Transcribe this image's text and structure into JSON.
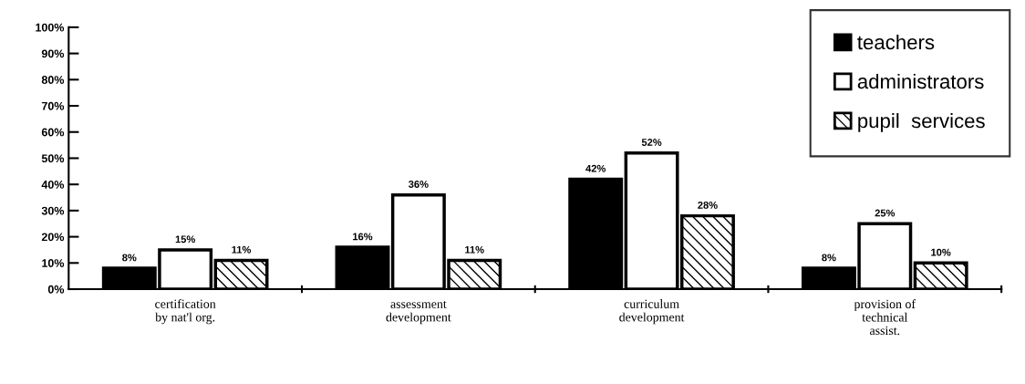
{
  "chart_data": {
    "type": "bar",
    "categories": [
      "certification\nby nat'l org.",
      "assessment\ndevelopment",
      "curriculum\ndevelopment",
      "provision of\ntechnical\nassist."
    ],
    "series": [
      {
        "name": "teachers",
        "color": "#000000",
        "values": [
          8,
          16,
          42,
          8
        ],
        "value_labels": [
          "8%",
          "16%",
          "42%",
          "8%"
        ]
      },
      {
        "name": "administrators",
        "color": "#ffffff",
        "values": [
          15,
          36,
          52,
          25
        ],
        "value_labels": [
          "15%",
          "36%",
          "52%",
          "25%"
        ]
      },
      {
        "name": "pupil  services",
        "color": "#ffffff",
        "values": [
          11,
          11,
          28,
          10
        ],
        "value_labels": [
          "11%",
          "11%",
          "28%",
          "10%"
        ]
      }
    ],
    "ylim": [
      0,
      100
    ],
    "yticks": [
      {
        "value": 0,
        "label": "0%"
      },
      {
        "value": 10,
        "label": "10%"
      },
      {
        "value": 20,
        "label": "20%"
      },
      {
        "value": 30,
        "label": "30%"
      },
      {
        "value": 40,
        "label": "40%"
      },
      {
        "value": 50,
        "label": "50%"
      },
      {
        "value": 60,
        "label": "60%"
      },
      {
        "value": 70,
        "label": "70%"
      },
      {
        "value": 80,
        "label": "80%"
      },
      {
        "value": 90,
        "label": "90%"
      },
      {
        "value": 100,
        "label": "100%"
      }
    ],
    "legend": "top right",
    "grid": false
  }
}
